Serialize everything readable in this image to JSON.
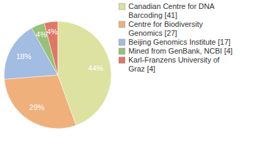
{
  "chart_data": {
    "type": "pie",
    "categories": [
      "Canadian Centre for DNA Barcoding [41]",
      "Centre for Biodiversity Genomics [27]",
      "Beijing Genomics Institute [17]",
      "Mined from GenBank, NCBI [4]",
      "Karl-Franzens University of Graz [4]"
    ],
    "values": [
      44,
      29,
      18,
      4,
      4
    ],
    "value_labels": [
      "44%",
      "29%",
      "18%",
      "4%",
      "4%"
    ],
    "colors": [
      "#dde2a0",
      "#f0b07c",
      "#a2bce2",
      "#98c178",
      "#e07766"
    ],
    "data_labels": true,
    "legend": "right"
  }
}
